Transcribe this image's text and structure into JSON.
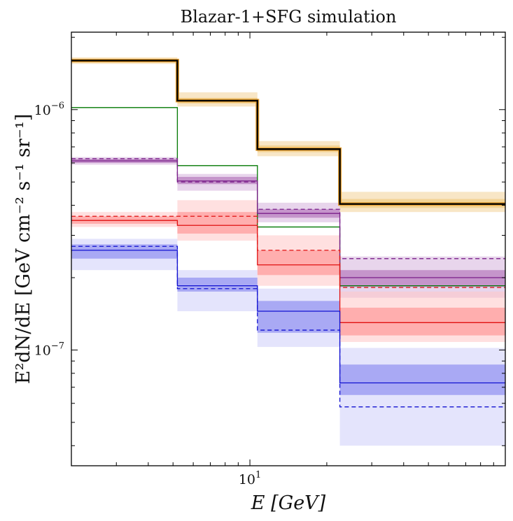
{
  "chart_data": {
    "type": "line",
    "title": "Blazar-1+SFG simulation",
    "xlabel": "E [GeV]",
    "ylabel": "E²dN/dE [GeV cm⁻² s⁻¹ sr⁻¹]",
    "xscale": "log",
    "yscale": "log",
    "xlim": [
      2.0,
      100.0
    ],
    "ylim": [
      3.3e-08,
      2.1e-06
    ],
    "grid": false,
    "x_ticks": [
      {
        "value": 10,
        "label": "10",
        "exp": "1"
      }
    ],
    "y_ticks": [
      {
        "value": 1e-07,
        "label": "10",
        "exp": "−7"
      },
      {
        "value": 1e-06,
        "label": "10",
        "exp": "−6"
      }
    ],
    "bin_edges": [
      2.0,
      5.2,
      10.7,
      22.5,
      100.0
    ],
    "bands": [
      {
        "name": "total-2sigma",
        "color": "#f5deb3",
        "opacity": 0.75,
        "lower": [
          1.55e-06,
          1.03e-06,
          6.4e-07,
          3.75e-07
        ],
        "upper": [
          1.65e-06,
          1.18e-06,
          7.4e-07,
          4.55e-07
        ]
      },
      {
        "name": "total-1sigma",
        "color": "#f0c878",
        "opacity": 0.6,
        "lower": [
          1.57e-06,
          1.06e-06,
          6.65e-07,
          3.9e-07
        ],
        "upper": [
          1.62e-06,
          1.12e-06,
          7.1e-07,
          4.25e-07
        ]
      },
      {
        "name": "purple-2sigma",
        "color": "#d6b3dc",
        "opacity": 0.55,
        "lower": [
          5.9e-07,
          4.6e-07,
          3.4e-07,
          1.65e-07
        ],
        "upper": [
          6.35e-07,
          5.4e-07,
          4.1e-07,
          2.45e-07
        ]
      },
      {
        "name": "purple-1sigma",
        "color": "#a860b0",
        "opacity": 0.55,
        "lower": [
          6e-07,
          4.9e-07,
          3.55e-07,
          1.83e-07
        ],
        "upper": [
          6.25e-07,
          5.25e-07,
          3.85e-07,
          2.15e-07
        ]
      },
      {
        "name": "red-2sigma",
        "color": "#ffc6c6",
        "opacity": 0.55,
        "lower": [
          3.25e-07,
          2.85e-07,
          1.85e-07,
          1.08e-07
        ],
        "upper": [
          3.75e-07,
          4.2e-07,
          3e-07,
          1.75e-07
        ]
      },
      {
        "name": "red-1sigma",
        "color": "#ff8c8c",
        "opacity": 0.6,
        "lower": [
          3.35e-07,
          3.05e-07,
          2.05e-07,
          1.15e-07
        ],
        "upper": [
          3.6e-07,
          3.75e-07,
          2.6e-07,
          1.5e-07
        ]
      },
      {
        "name": "blue-2sigma",
        "color": "#d2d2fa",
        "opacity": 0.6,
        "lower": [
          2.15e-07,
          1.45e-07,
          1.03e-07,
          4e-08
        ],
        "upper": [
          2.9e-07,
          2.15e-07,
          1.8e-07,
          1.02e-07
        ]
      },
      {
        "name": "blue-1sigma",
        "color": "#8888f0",
        "opacity": 0.65,
        "lower": [
          2.4e-07,
          1.75e-07,
          1.18e-07,
          6.5e-08
        ],
        "upper": [
          2.75e-07,
          2e-07,
          1.6e-07,
          8.7e-08
        ]
      }
    ],
    "series": [
      {
        "color": "#000000",
        "style": "solid",
        "width": 2.4,
        "values": [
          1.6e-06,
          1.09e-06,
          6.85e-07,
          4.05e-07
        ]
      },
      {
        "color": "#007700",
        "style": "solid",
        "width": 1.3,
        "values": [
          1.02e-06,
          5.85e-07,
          3.25e-07,
          1.85e-07
        ]
      },
      {
        "color": "#7a1f8a",
        "style": "solid",
        "width": 1.3,
        "values": [
          6.12e-07,
          5.05e-07,
          3.7e-07,
          2e-07
        ]
      },
      {
        "color": "#7a1f8a",
        "style": "dashed",
        "width": 1.3,
        "values": [
          6.25e-07,
          5e-07,
          3.85e-07,
          2.4e-07
        ]
      },
      {
        "color": "#e01010",
        "style": "solid",
        "width": 1.3,
        "values": [
          3.46e-07,
          3.3e-07,
          2.26e-07,
          1.3e-07
        ]
      },
      {
        "color": "#e01010",
        "style": "dashed",
        "width": 1.3,
        "values": [
          3.6e-07,
          3.6e-07,
          2.6e-07,
          1.82e-07
        ]
      },
      {
        "color": "#1010d0",
        "style": "solid",
        "width": 1.3,
        "values": [
          2.6e-07,
          1.85e-07,
          1.45e-07,
          7.3e-08
        ]
      },
      {
        "color": "#1010d0",
        "style": "dashed",
        "width": 1.3,
        "values": [
          2.7e-07,
          1.8e-07,
          1.21e-07,
          5.8e-08
        ]
      }
    ]
  }
}
